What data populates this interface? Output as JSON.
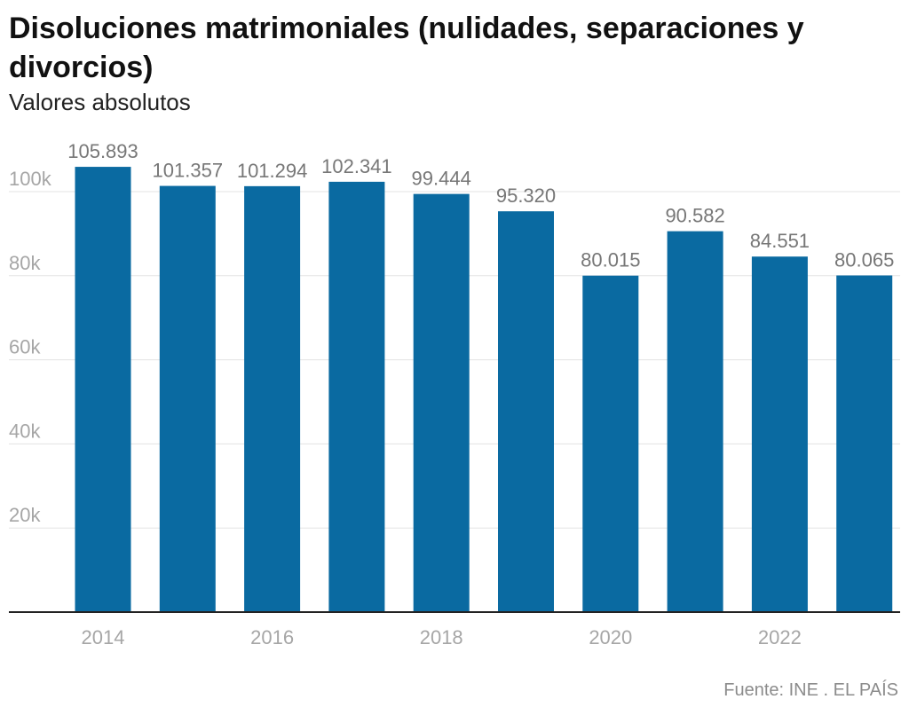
{
  "chart_data": {
    "type": "bar",
    "title": "Disoluciones matrimoniales (nulidades, separaciones y divorcios)",
    "subtitle": "Valores absolutos",
    "categories": [
      "2014",
      "2015",
      "2016",
      "2017",
      "2018",
      "2019",
      "2020",
      "2021",
      "2022",
      "2023"
    ],
    "values": [
      105893,
      101357,
      101294,
      102341,
      99444,
      95320,
      80015,
      90582,
      84551,
      80065
    ],
    "value_labels": [
      "105.893",
      "101.357",
      "101.294",
      "102.341",
      "99.444",
      "95.320",
      "80.015",
      "90.582",
      "84.551",
      "80.065"
    ],
    "x_tick_labels": [
      "2014",
      "2016",
      "2018",
      "2020",
      "2022"
    ],
    "y_ticks": [
      20000,
      40000,
      60000,
      80000,
      100000
    ],
    "y_tick_labels": [
      "20k",
      "40k",
      "60k",
      "80k",
      "100k"
    ],
    "ylim": [
      0,
      110000
    ],
    "grid": true,
    "bar_color": "#0a6aa1"
  },
  "source": "Fuente: INE . EL PAÍS"
}
